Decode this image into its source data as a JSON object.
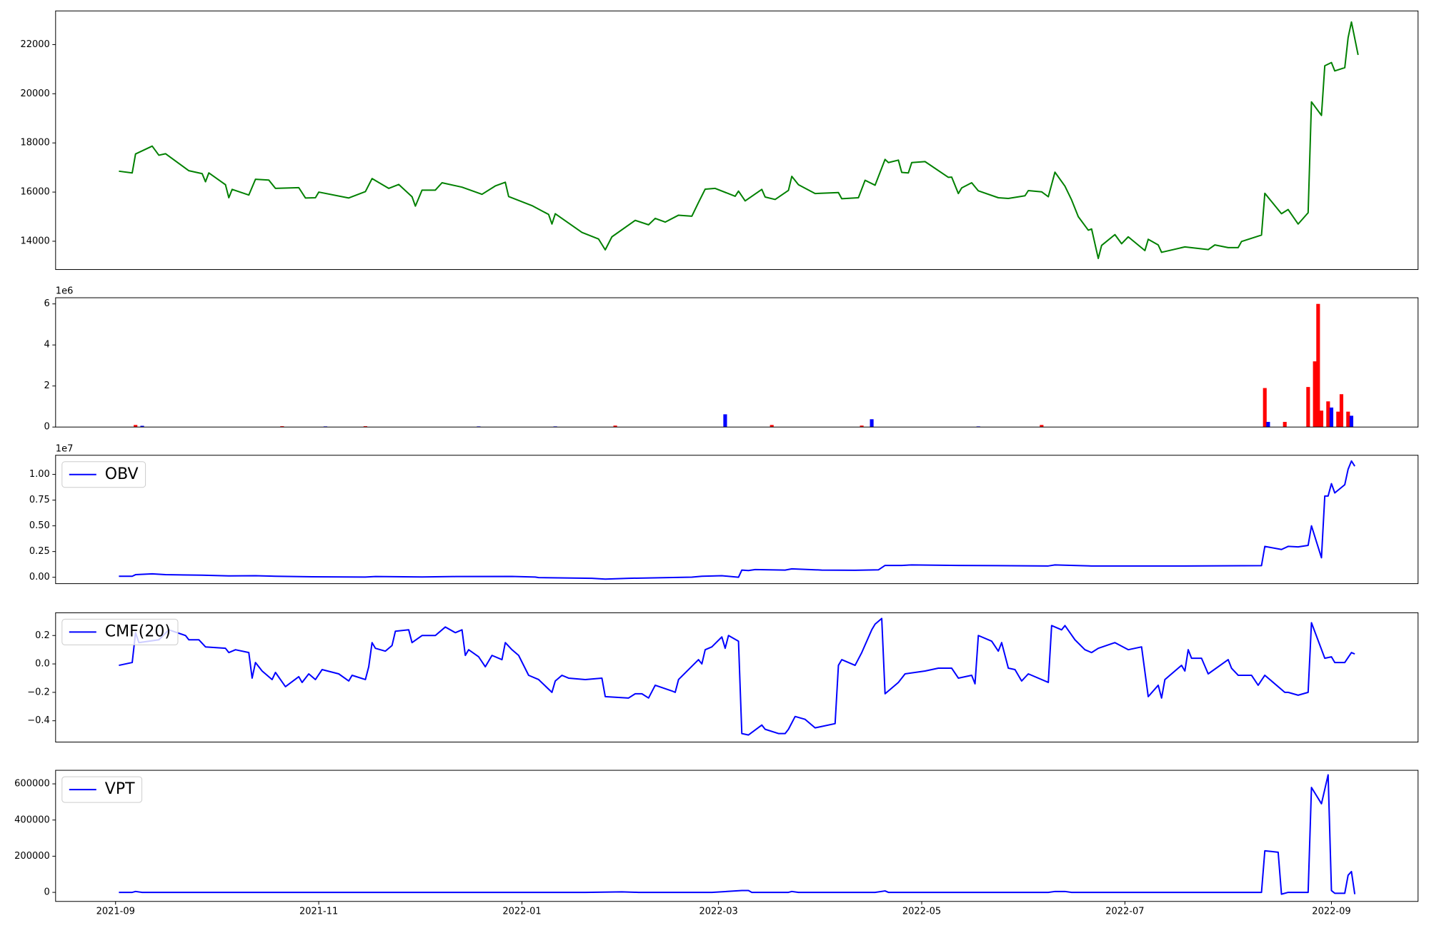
{
  "chart_data": [
    {
      "type": "line",
      "color": "green",
      "xlim": [
        18853,
        19262
      ],
      "ylim": [
        12850,
        23370
      ],
      "yticks": [
        14000,
        16000,
        18000,
        20000,
        22000
      ],
      "x": [
        18872,
        18876,
        18877,
        18882,
        18884,
        18886,
        18893,
        18897,
        18898,
        18899,
        18904,
        18905,
        18906,
        18911,
        18913,
        18917,
        18919,
        18926,
        18928,
        18931,
        18932,
        18941,
        18946,
        18948,
        18953,
        18956,
        18960,
        18961,
        18963,
        18967,
        18969,
        18975,
        18981,
        18985,
        18988,
        18989,
        18996,
        19001,
        19002,
        19003,
        19011,
        19016,
        19018,
        19020,
        19027,
        19031,
        19033,
        19036,
        19040,
        19044,
        19046,
        19048,
        19051,
        19057,
        19058,
        19060,
        19065,
        19066,
        19069,
        19073,
        19074,
        19076,
        19081,
        19088,
        19089,
        19094,
        19096,
        19099,
        19102,
        19103,
        19106,
        19107,
        19109,
        19110,
        19114,
        19121,
        19122,
        19124,
        19125,
        19128,
        19130,
        19136,
        19139,
        19144,
        19145,
        19149,
        19151,
        19153,
        19156,
        19158,
        19160,
        19163,
        19164,
        19166,
        19167,
        19171,
        19173,
        19175,
        19180,
        19181,
        19184,
        19185,
        19192,
        19199,
        19201,
        19205,
        19208,
        19209,
        19215,
        19216,
        19221,
        19223,
        19226,
        19229,
        19230,
        19233,
        19234,
        19236,
        19237,
        19240,
        19241,
        19242,
        19244
      ],
      "values": [
        16850,
        16780,
        17550,
        17870,
        17500,
        17560,
        16870,
        16750,
        16420,
        16780,
        16300,
        15770,
        16110,
        15880,
        16520,
        16490,
        16150,
        16180,
        15760,
        15770,
        16000,
        15760,
        16020,
        16550,
        16150,
        16310,
        15810,
        15430,
        16080,
        16080,
        16380,
        16200,
        15910,
        16250,
        16400,
        15820,
        15450,
        15090,
        14700,
        15120,
        14360,
        14090,
        13650,
        14180,
        14850,
        14670,
        14930,
        14780,
        15060,
        15020,
        15580,
        16120,
        16150,
        15830,
        16040,
        15640,
        16110,
        15800,
        15700,
        16070,
        16640,
        16300,
        15940,
        15980,
        15730,
        15770,
        16480,
        16280,
        17330,
        17200,
        17300,
        16800,
        16780,
        17200,
        17240,
        16600,
        16610,
        15940,
        16170,
        16380,
        16050,
        15770,
        15740,
        15850,
        16060,
        16010,
        15810,
        16810,
        16240,
        15680,
        15000,
        14450,
        14500,
        13300,
        13830,
        14270,
        13900,
        14180,
        13620,
        14080,
        13850,
        13550,
        13770,
        13660,
        13850,
        13740,
        13740,
        13990,
        14250,
        15950,
        15120,
        15290,
        14700,
        15160,
        19670,
        19120,
        21140,
        21270,
        20930,
        21060,
        22280,
        22920,
        21580
      ]
    },
    {
      "type": "bar",
      "xlim": [
        18853,
        19262
      ],
      "ylim": [
        0,
        6300000
      ],
      "y_offset_label": "1e6",
      "yticks": [
        0,
        {
          "value": 2000000,
          "label": "2"
        },
        {
          "value": 4000000,
          "label": "4"
        },
        {
          "value": 6000000,
          "label": "6"
        }
      ],
      "series": [
        {
          "color": "red",
          "x": [
            18877,
            18921,
            18946,
            19021,
            19068,
            19095,
            19149,
            19216,
            19222,
            19229,
            19231,
            19232,
            19233,
            19235,
            19238,
            19239,
            19241
          ],
          "values": [
            100000,
            40000,
            40000,
            70000,
            100000,
            70000,
            100000,
            1900000,
            250000,
            1950000,
            3200000,
            6000000,
            800000,
            1250000,
            750000,
            1600000,
            750000
          ]
        },
        {
          "color": "blue",
          "x": [
            18879,
            18934,
            18980,
            19003,
            19054,
            19098,
            19130,
            19217,
            19236,
            19242
          ],
          "values": [
            60000,
            30000,
            30000,
            30000,
            620000,
            380000,
            30000,
            250000,
            950000,
            550000
          ]
        }
      ]
    },
    {
      "type": "line",
      "xlim": [
        18853,
        19262
      ],
      "ylim": [
        -620000,
        11860000
      ],
      "y_offset_label": "1e7",
      "legend": "upper left",
      "yticks": [
        {
          "value": 0,
          "label": "0.00"
        },
        {
          "value": 2500000,
          "label": "0.25"
        },
        {
          "value": 5000000,
          "label": "0.50"
        },
        {
          "value": 7500000,
          "label": "0.75"
        },
        {
          "value": 10000000,
          "label": "1.00"
        }
      ],
      "series": [
        {
          "name": "OBV",
          "color": "blue",
          "x": [
            18872,
            18876,
            18877,
            18882,
            18886,
            18897,
            18905,
            18913,
            18919,
            18930,
            18946,
            18949,
            18963,
            18973,
            18990,
            18997,
            18998,
            19014,
            19018,
            19025,
            19044,
            19047,
            19053,
            19058,
            19059,
            19061,
            19063,
            19072,
            19074,
            19083,
            19093,
            19100,
            19102,
            19107,
            19110,
            19124,
            19151,
            19153,
            19164,
            19192,
            19215,
            19216,
            19221,
            19223,
            19226,
            19229,
            19230,
            19233,
            19234,
            19235,
            19236,
            19237,
            19240,
            19241,
            19242,
            19243
          ],
          "values": [
            100000,
            100000,
            250000,
            330000,
            250000,
            200000,
            130000,
            150000,
            100000,
            50000,
            20000,
            70000,
            30000,
            70000,
            80000,
            20000,
            -30000,
            -100000,
            -180000,
            -100000,
            10000,
            100000,
            150000,
            0,
            700000,
            650000,
            750000,
            700000,
            820000,
            700000,
            680000,
            720000,
            1150000,
            1150000,
            1200000,
            1150000,
            1100000,
            1200000,
            1100000,
            1100000,
            1130000,
            3000000,
            2700000,
            3000000,
            2950000,
            3100000,
            5000000,
            1900000,
            7900000,
            7900000,
            9100000,
            8200000,
            9000000,
            10500000,
            11300000,
            10800000
          ]
        }
      ]
    },
    {
      "type": "line",
      "xlim": [
        18853,
        19262
      ],
      "ylim": [
        -0.55,
        0.36
      ],
      "legend": "upper left",
      "yticks": [
        {
          "value": -0.4,
          "label": "−0.4"
        },
        {
          "value": -0.2,
          "label": "−0.2"
        },
        {
          "value": 0,
          "label": "0.0"
        },
        0.2
      ],
      "series": [
        {
          "name": "CMF(20)",
          "color": "blue",
          "x": [
            18872,
            18876,
            18877,
            18878,
            18884,
            18887,
            18892,
            18893,
            18896,
            18898,
            18904,
            18905,
            18907,
            18911,
            18912,
            18913,
            18915,
            18918,
            18919,
            18922,
            18926,
            18927,
            18929,
            18931,
            18933,
            18938,
            18941,
            18942,
            18946,
            18947,
            18948,
            18949,
            18952,
            18954,
            18955,
            18959,
            18960,
            18963,
            18967,
            18970,
            18973,
            18975,
            18976,
            18977,
            18980,
            18982,
            18984,
            18987,
            18988,
            18990,
            18992,
            18995,
            18998,
            19002,
            19003,
            19005,
            19007,
            19012,
            19017,
            19018,
            19025,
            19027,
            19029,
            19031,
            19033,
            19038,
            19039,
            19040,
            19046,
            19047,
            19048,
            19050,
            19053,
            19054,
            19055,
            19058,
            19059,
            19061,
            19065,
            19066,
            19070,
            19072,
            19073,
            19075,
            19078,
            19081,
            19087,
            19088,
            19089,
            19093,
            19095,
            19098,
            19099,
            19101,
            19102,
            19106,
            19108,
            19114,
            19118,
            19122,
            19124,
            19128,
            19129,
            19130,
            19134,
            19136,
            19137,
            19139,
            19141,
            19143,
            19145,
            19151,
            19152,
            19155,
            19156,
            19159,
            19162,
            19164,
            19166,
            19171,
            19175,
            19179,
            19181,
            19184,
            19185,
            19186,
            19191,
            19192,
            19193,
            19194,
            19197,
            19199,
            19205,
            19206,
            19208,
            19212,
            19214,
            19216,
            19222,
            19223,
            19226,
            19229,
            19230,
            19234,
            19236,
            19237,
            19240,
            19242,
            19243
          ],
          "values": [
            -0.01,
            0.01,
            0.22,
            0.15,
            0.17,
            0.24,
            0.2,
            0.17,
            0.17,
            0.12,
            0.11,
            0.08,
            0.1,
            0.08,
            -0.1,
            0.01,
            -0.05,
            -0.11,
            -0.06,
            -0.16,
            -0.09,
            -0.13,
            -0.07,
            -0.11,
            -0.04,
            -0.07,
            -0.12,
            -0.08,
            -0.11,
            -0.02,
            0.15,
            0.11,
            0.09,
            0.13,
            0.23,
            0.24,
            0.15,
            0.2,
            0.2,
            0.26,
            0.22,
            0.24,
            0.06,
            0.1,
            0.05,
            -0.02,
            0.06,
            0.03,
            0.15,
            0.1,
            0.06,
            -0.08,
            -0.11,
            -0.2,
            -0.12,
            -0.08,
            -0.1,
            -0.11,
            -0.1,
            -0.23,
            -0.24,
            -0.21,
            -0.21,
            -0.24,
            -0.15,
            -0.19,
            -0.2,
            -0.11,
            0.03,
            0,
            0.1,
            0.12,
            0.19,
            0.11,
            0.2,
            0.16,
            -0.49,
            -0.5,
            -0.43,
            -0.46,
            -0.49,
            -0.49,
            -0.46,
            -0.37,
            -0.39,
            -0.45,
            -0.42,
            -0.01,
            0.03,
            -0.01,
            0.08,
            0.24,
            0.28,
            0.32,
            -0.21,
            -0.13,
            -0.07,
            -0.05,
            -0.03,
            -0.03,
            -0.1,
            -0.08,
            -0.14,
            0.2,
            0.16,
            0.09,
            0.15,
            -0.03,
            -0.04,
            -0.12,
            -0.07,
            -0.13,
            0.27,
            0.24,
            0.27,
            0.17,
            0.1,
            0.08,
            0.11,
            0.15,
            0.1,
            0.12,
            -0.23,
            -0.15,
            -0.24,
            -0.11,
            -0.01,
            -0.05,
            0.1,
            0.04,
            0.04,
            -0.07,
            0.03,
            -0.03,
            -0.08,
            -0.08,
            -0.15,
            -0.08,
            -0.2,
            -0.2,
            -0.22,
            -0.2,
            0.29,
            0.04,
            0.05,
            0.01,
            0.01,
            0.08,
            0.07
          ]
        }
      ]
    },
    {
      "type": "line",
      "xlim": [
        18853,
        19262
      ],
      "ylim": [
        -50000,
        675000
      ],
      "legend": "upper left",
      "yticks": [
        0,
        200000,
        400000,
        600000
      ],
      "xticks": [
        {
          "value": 18871,
          "label": "2021-09"
        },
        {
          "value": 18932,
          "label": "2021-11"
        },
        {
          "value": 18993,
          "label": "2022-01"
        },
        {
          "value": 19052,
          "label": "2022-03"
        },
        {
          "value": 19113,
          "label": "2022-05"
        },
        {
          "value": 19174,
          "label": "2022-07"
        },
        {
          "value": 19236,
          "label": "2022-09"
        }
      ],
      "series": [
        {
          "name": "VPT",
          "color": "blue",
          "x": [
            18872,
            18876,
            18877,
            18879,
            18919,
            19012,
            19023,
            19028,
            19050,
            19059,
            19061,
            19062,
            19073,
            19074,
            19076,
            19099,
            19102,
            19103,
            19151,
            19153,
            19156,
            19158,
            19215,
            19216,
            19220,
            19221,
            19223,
            19229,
            19230,
            19233,
            19235,
            19236,
            19237,
            19240,
            19241,
            19242,
            19243
          ],
          "values": [
            0,
            0,
            5000,
            0,
            0,
            0,
            3000,
            0,
            0,
            10000,
            10000,
            0,
            0,
            5000,
            0,
            0,
            8000,
            0,
            0,
            5000,
            5000,
            0,
            0,
            230000,
            222000,
            -10000,
            0,
            0,
            580000,
            490000,
            650000,
            10000,
            -5000,
            -5000,
            95000,
            115000,
            -10000
          ]
        }
      ]
    }
  ]
}
